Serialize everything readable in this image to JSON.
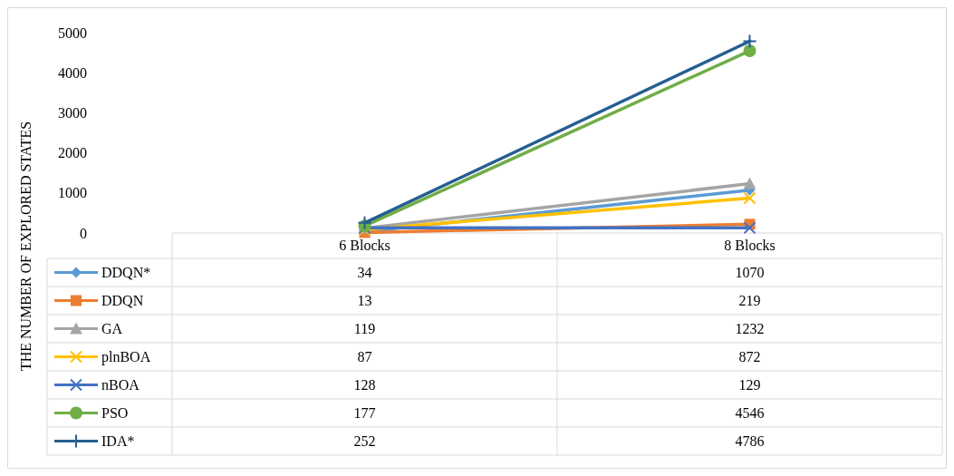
{
  "chart_data": {
    "type": "line",
    "ylabel": "THE NUMBER OF EXPLORED STATES",
    "categories": [
      "6 Blocks",
      "8 Blocks"
    ],
    "ylim": [
      0,
      5000
    ],
    "yticks": [
      0,
      1000,
      2000,
      3000,
      4000,
      5000
    ],
    "data_labels": true,
    "legend": "bottom",
    "series": [
      {
        "name": "DDQN*",
        "color": "#5b9bd5",
        "marker": "diamond",
        "values": [
          34,
          1070
        ]
      },
      {
        "name": "DDQN",
        "color": "#ed7d31",
        "marker": "square",
        "values": [
          13,
          219
        ]
      },
      {
        "name": "GA",
        "color": "#a5a5a5",
        "marker": "triangle",
        "values": [
          119,
          1232
        ]
      },
      {
        "name": "plnBOA",
        "color": "#ffc000",
        "marker": "cross",
        "values": [
          87,
          872
        ]
      },
      {
        "name": "nBOA",
        "color": "#4472c4",
        "marker": "cross",
        "values": [
          128,
          129
        ]
      },
      {
        "name": "PSO",
        "color": "#70ad47",
        "marker": "circle",
        "values": [
          177,
          4546
        ]
      },
      {
        "name": "IDA*",
        "color": "#255e91",
        "marker": "plus",
        "values": [
          252,
          4786
        ]
      }
    ]
  }
}
